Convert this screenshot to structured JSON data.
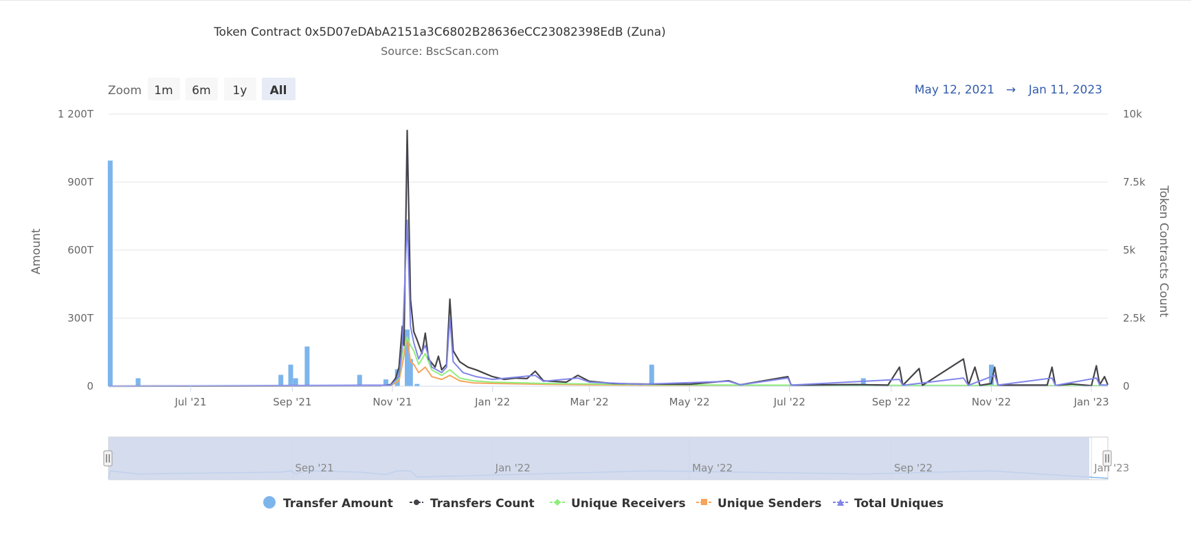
{
  "zoom": {
    "label": "Zoom",
    "buttons": [
      {
        "label": "1m",
        "selected": false
      },
      {
        "label": "6m",
        "selected": false
      },
      {
        "label": "1y",
        "selected": false
      },
      {
        "label": "All",
        "selected": true
      }
    ]
  },
  "range": {
    "from": "May 12, 2021",
    "arrow": "→",
    "to": "Jan 11, 2023"
  },
  "colors": {
    "transfer_amount": "#7cb5ec",
    "transfers_count": "#434348",
    "unique_receivers": "#90ed7d",
    "unique_senders": "#f7a35c",
    "total_uniques": "#8085e9",
    "navigator_mask": "#ccd6eb"
  },
  "chart_data": {
    "type": "bar",
    "title": "Token Contract 0x5D07eDAbA2151a3C6802B28636eCC23082398EdB (Zuna)",
    "subtitle": "Source: BscScan.com",
    "x_range": [
      "2021-05-12",
      "2023-01-11"
    ],
    "x_ticks": [
      {
        "date": "2021-07-01",
        "label": "Jul '21"
      },
      {
        "date": "2021-09-01",
        "label": "Sep '21"
      },
      {
        "date": "2021-11-01",
        "label": "Nov '21"
      },
      {
        "date": "2022-01-01",
        "label": "Jan '22"
      },
      {
        "date": "2022-03-01",
        "label": "Mar '22"
      },
      {
        "date": "2022-05-01",
        "label": "May '22"
      },
      {
        "date": "2022-07-01",
        "label": "Jul '22"
      },
      {
        "date": "2022-09-01",
        "label": "Sep '22"
      },
      {
        "date": "2022-11-01",
        "label": "Nov '22"
      },
      {
        "date": "2023-01-01",
        "label": "Jan '23"
      }
    ],
    "y_left": {
      "title": "Amount",
      "range": [
        0,
        1200
      ],
      "ticks": [
        {
          "value": 0,
          "label": "0"
        },
        {
          "value": 300,
          "label": "300T"
        },
        {
          "value": 600,
          "label": "600T"
        },
        {
          "value": 900,
          "label": "900T"
        },
        {
          "value": 1200,
          "label": "1 200T"
        }
      ]
    },
    "y_right": {
      "title": "Token Contracts Count",
      "range": [
        0,
        10000
      ],
      "ticks": [
        {
          "value": 0,
          "label": "0"
        },
        {
          "value": 2500,
          "label": "2.5k"
        },
        {
          "value": 5000,
          "label": "5k"
        },
        {
          "value": 7500,
          "label": "7.5k"
        },
        {
          "value": 10000,
          "label": "10k"
        }
      ]
    },
    "navigator_ticks": [
      {
        "date": "2021-09-01",
        "label": "Sep '21"
      },
      {
        "date": "2022-01-01",
        "label": "Jan '22"
      },
      {
        "date": "2022-05-01",
        "label": "May '22"
      },
      {
        "date": "2022-09-01",
        "label": "Sep '22"
      },
      {
        "date": "2023-01-01",
        "label": "Jan '23"
      }
    ],
    "legend": [
      "Transfer Amount",
      "Transfers Count",
      "Unique Receivers",
      "Unique Senders",
      "Total Uniques"
    ],
    "series": [
      {
        "name": "Transfer Amount",
        "type": "column",
        "axis": "left",
        "points": [
          [
            "2021-05-13",
            995
          ],
          [
            "2021-05-30",
            35
          ],
          [
            "2021-08-25",
            50
          ],
          [
            "2021-08-31",
            95
          ],
          [
            "2021-09-03",
            35
          ],
          [
            "2021-09-10",
            175
          ],
          [
            "2021-10-12",
            50
          ],
          [
            "2021-10-28",
            30
          ],
          [
            "2021-11-04",
            75
          ],
          [
            "2021-11-10",
            250
          ],
          [
            "2021-11-12",
            120
          ],
          [
            "2021-11-16",
            10
          ],
          [
            "2022-04-08",
            95
          ],
          [
            "2022-08-15",
            35
          ],
          [
            "2022-11-01",
            95
          ]
        ]
      },
      {
        "name": "Transfers Count",
        "type": "line",
        "axis": "right",
        "points": [
          [
            "2021-05-12",
            0
          ],
          [
            "2021-10-25",
            10
          ],
          [
            "2021-10-31",
            60
          ],
          [
            "2021-11-03",
            300
          ],
          [
            "2021-11-05",
            700
          ],
          [
            "2021-11-07",
            2200
          ],
          [
            "2021-11-08",
            1500
          ],
          [
            "2021-11-10",
            9400
          ],
          [
            "2021-11-12",
            3200
          ],
          [
            "2021-11-14",
            2000
          ],
          [
            "2021-11-16",
            1700
          ],
          [
            "2021-11-19",
            1200
          ],
          [
            "2021-11-21",
            1950
          ],
          [
            "2021-11-23",
            1000
          ],
          [
            "2021-11-27",
            700
          ],
          [
            "2021-11-29",
            1100
          ],
          [
            "2021-12-01",
            600
          ],
          [
            "2021-12-04",
            800
          ],
          [
            "2021-12-06",
            3200
          ],
          [
            "2021-12-08",
            1300
          ],
          [
            "2021-12-12",
            900
          ],
          [
            "2021-12-17",
            700
          ],
          [
            "2021-12-22",
            600
          ],
          [
            "2021-12-26",
            500
          ],
          [
            "2022-01-01",
            350
          ],
          [
            "2022-01-08",
            250
          ],
          [
            "2022-01-15",
            300
          ],
          [
            "2022-01-22",
            280
          ],
          [
            "2022-01-27",
            550
          ],
          [
            "2022-02-01",
            200
          ],
          [
            "2022-02-15",
            150
          ],
          [
            "2022-02-22",
            400
          ],
          [
            "2022-03-01",
            180
          ],
          [
            "2022-03-15",
            100
          ],
          [
            "2022-04-01",
            80
          ],
          [
            "2022-05-01",
            70
          ],
          [
            "2022-05-25",
            200
          ],
          [
            "2022-06-01",
            50
          ],
          [
            "2022-06-30",
            350
          ],
          [
            "2022-07-02",
            40
          ],
          [
            "2022-08-10",
            60
          ],
          [
            "2022-08-30",
            40
          ],
          [
            "2022-09-06",
            700
          ],
          [
            "2022-09-08",
            30
          ],
          [
            "2022-09-18",
            650
          ],
          [
            "2022-09-20",
            30
          ],
          [
            "2022-10-15",
            1000
          ],
          [
            "2022-10-18",
            30
          ],
          [
            "2022-10-22",
            700
          ],
          [
            "2022-10-25",
            30
          ],
          [
            "2022-11-01",
            100
          ],
          [
            "2022-11-03",
            700
          ],
          [
            "2022-11-05",
            40
          ],
          [
            "2022-12-05",
            40
          ],
          [
            "2022-12-08",
            700
          ],
          [
            "2022-12-10",
            30
          ],
          [
            "2022-12-20",
            80
          ],
          [
            "2023-01-01",
            20
          ],
          [
            "2023-01-04",
            750
          ],
          [
            "2023-01-06",
            50
          ],
          [
            "2023-01-09",
            350
          ],
          [
            "2023-01-11",
            50
          ]
        ]
      },
      {
        "name": "Unique Receivers",
        "type": "line",
        "axis": "right",
        "points": [
          [
            "2021-05-12",
            0
          ],
          [
            "2021-10-31",
            30
          ],
          [
            "2021-11-05",
            300
          ],
          [
            "2021-11-07",
            1200
          ],
          [
            "2021-11-10",
            1800
          ],
          [
            "2021-11-12",
            1500
          ],
          [
            "2021-11-14",
            1300
          ],
          [
            "2021-11-17",
            800
          ],
          [
            "2021-11-21",
            1200
          ],
          [
            "2021-11-25",
            600
          ],
          [
            "2021-12-01",
            400
          ],
          [
            "2021-12-06",
            600
          ],
          [
            "2021-12-12",
            300
          ],
          [
            "2021-12-20",
            200
          ],
          [
            "2022-01-01",
            150
          ],
          [
            "2022-02-01",
            100
          ],
          [
            "2022-03-01",
            80
          ],
          [
            "2022-04-01",
            60
          ],
          [
            "2022-06-01",
            40
          ],
          [
            "2022-09-01",
            30
          ],
          [
            "2023-01-11",
            20
          ]
        ]
      },
      {
        "name": "Unique Senders",
        "type": "line",
        "axis": "right",
        "points": [
          [
            "2021-05-12",
            0
          ],
          [
            "2021-10-31",
            20
          ],
          [
            "2021-11-05",
            200
          ],
          [
            "2021-11-07",
            800
          ],
          [
            "2021-11-10",
            1800
          ],
          [
            "2021-11-12",
            900
          ],
          [
            "2021-11-14",
            800
          ],
          [
            "2021-11-17",
            500
          ],
          [
            "2021-11-21",
            700
          ],
          [
            "2021-11-25",
            350
          ],
          [
            "2021-12-01",
            250
          ],
          [
            "2021-12-06",
            400
          ],
          [
            "2021-12-12",
            200
          ],
          [
            "2021-12-20",
            120
          ],
          [
            "2022-01-01",
            100
          ],
          [
            "2022-02-01",
            70
          ],
          [
            "2022-03-01",
            50
          ],
          [
            "2022-04-01",
            40
          ],
          [
            "2022-06-01",
            25
          ],
          [
            "2022-09-01",
            20
          ],
          [
            "2023-01-11",
            15
          ]
        ]
      },
      {
        "name": "Total Uniques",
        "type": "line",
        "axis": "right",
        "points": [
          [
            "2021-05-12",
            0
          ],
          [
            "2021-10-31",
            40
          ],
          [
            "2021-11-05",
            350
          ],
          [
            "2021-11-07",
            1500
          ],
          [
            "2021-11-10",
            6100
          ],
          [
            "2021-11-12",
            2200
          ],
          [
            "2021-11-14",
            1600
          ],
          [
            "2021-11-17",
            1000
          ],
          [
            "2021-11-21",
            1500
          ],
          [
            "2021-11-25",
            700
          ],
          [
            "2021-12-01",
            500
          ],
          [
            "2021-12-04",
            700
          ],
          [
            "2021-12-06",
            2500
          ],
          [
            "2021-12-08",
            900
          ],
          [
            "2021-12-14",
            500
          ],
          [
            "2021-12-22",
            350
          ],
          [
            "2022-01-01",
            250
          ],
          [
            "2022-01-27",
            400
          ],
          [
            "2022-02-01",
            180
          ],
          [
            "2022-02-22",
            300
          ],
          [
            "2022-03-01",
            150
          ],
          [
            "2022-04-01",
            70
          ],
          [
            "2022-05-25",
            180
          ],
          [
            "2022-06-01",
            50
          ],
          [
            "2022-06-30",
            300
          ],
          [
            "2022-07-02",
            40
          ],
          [
            "2022-09-06",
            250
          ],
          [
            "2022-09-08",
            30
          ],
          [
            "2022-10-15",
            300
          ],
          [
            "2022-10-18",
            30
          ],
          [
            "2022-11-03",
            400
          ],
          [
            "2022-11-05",
            40
          ],
          [
            "2022-12-08",
            300
          ],
          [
            "2022-12-10",
            30
          ],
          [
            "2023-01-04",
            300
          ],
          [
            "2023-01-06",
            50
          ],
          [
            "2023-01-11",
            40
          ]
        ]
      }
    ]
  }
}
